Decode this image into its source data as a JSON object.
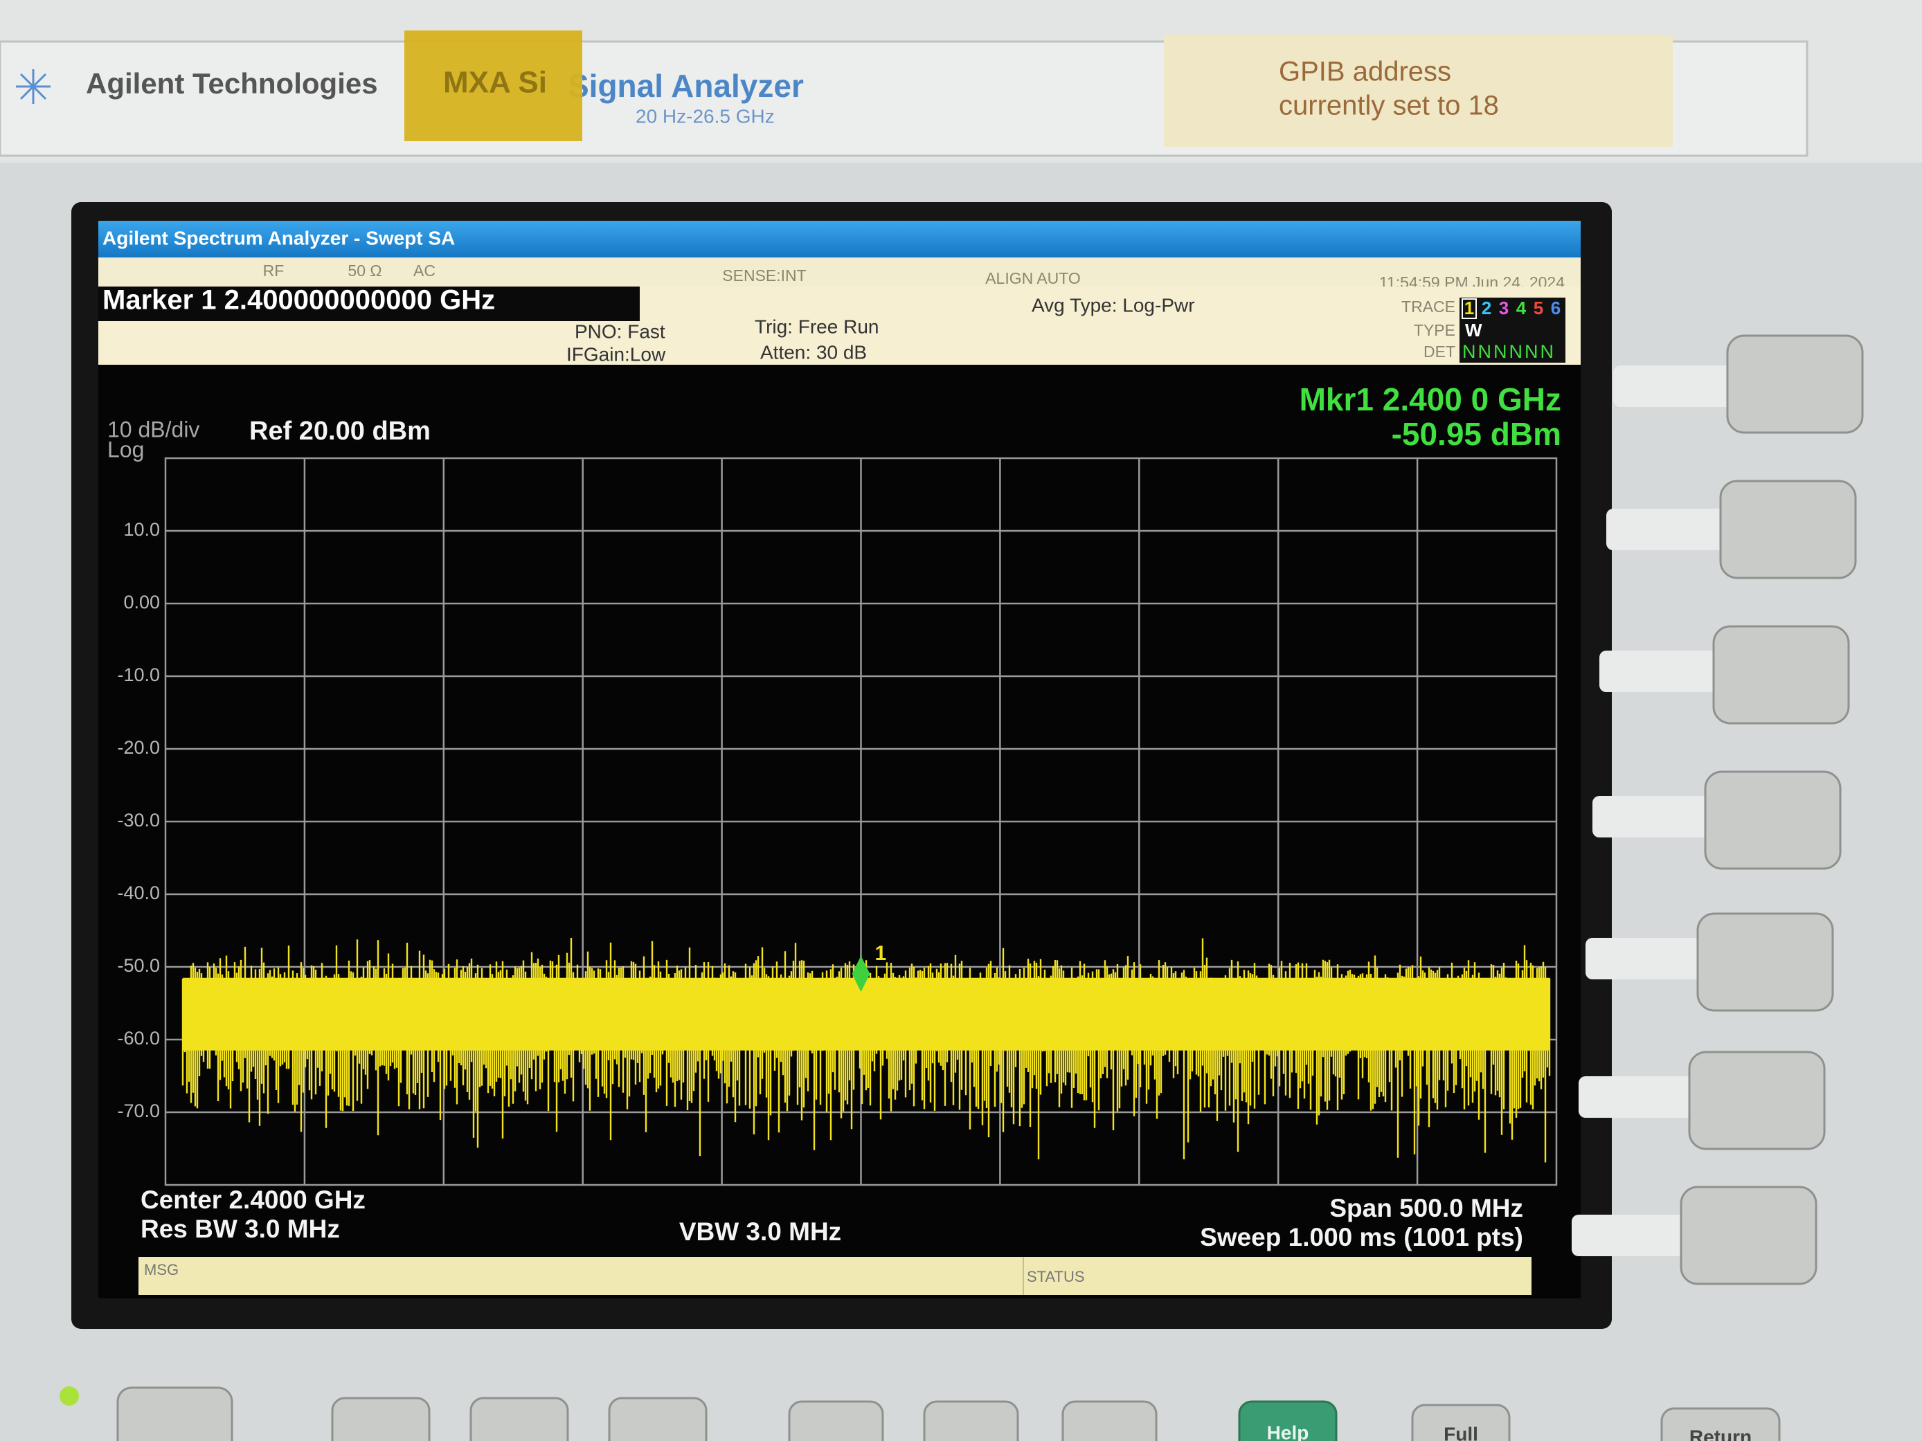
{
  "header": {
    "brand": "Agilent Technologies",
    "model": "Signal Analyzer",
    "range": "20 Hz-26.5 GHz",
    "sticker": "MXA Si",
    "gpib_note": [
      "GPIB address",
      "currently set to 18"
    ]
  },
  "screen": {
    "title": "Agilent Spectrum Analyzer - Swept SA",
    "status": {
      "rf": "RF",
      "impedance": "50 Ω",
      "coupling": "AC",
      "sense": "SENSE:INT",
      "align": "ALIGN AUTO",
      "time": "11:54:59 PM Jun 24, 2024"
    },
    "marker_label": "Marker 1 2.400000000000 GHz",
    "pno": "PNO: Fast",
    "ifgain": "IFGain:Low",
    "trig": "Trig: Free Run",
    "atten": "Atten: 30 dB",
    "avg_type": "Avg Type: Log-Pwr",
    "trace": {
      "trace_label": "TRACE",
      "trace_numbers": [
        "1",
        "2",
        "3",
        "4",
        "5",
        "6"
      ],
      "type_label": "TYPE",
      "type_value": "W",
      "det_label": "DET",
      "det_values": "NNNNNN"
    },
    "readout": {
      "mkr_freq": "Mkr1 2.400 0 GHz",
      "mkr_amp": "-50.95 dBm"
    },
    "scale": "10 dB/div",
    "scale_type": "Log",
    "ref": "Ref 20.00 dBm",
    "center": "Center 2.4000 GHz",
    "rbw": "Res BW 3.0 MHz",
    "vbw": "VBW 3.0 MHz",
    "span": "Span 500.0 MHz",
    "sweep": "Sweep  1.000 ms (1001 pts)",
    "msg": "MSG",
    "status_label": "STATUS"
  },
  "chart_data": {
    "type": "spectrum",
    "xlim": [
      2.15,
      2.65
    ],
    "ylim": [
      -80,
      20
    ],
    "yticks": [
      {
        "value": 10,
        "label": "10.0"
      },
      {
        "value": 0,
        "label": "0.00"
      },
      {
        "value": -10,
        "label": "-10.0"
      },
      {
        "value": -20,
        "label": "-20.0"
      },
      {
        "value": -30,
        "label": "-30.0"
      },
      {
        "value": -40,
        "label": "-40.0"
      },
      {
        "value": -50,
        "label": "-50.0"
      },
      {
        "value": -60,
        "label": "-60.0"
      },
      {
        "value": -70,
        "label": "-70.0"
      }
    ],
    "grid": true,
    "color": "#f2e21c",
    "marker": {
      "label": "1",
      "x": 2.4,
      "y": -50.95,
      "color": "#3fd03f"
    }
  },
  "buttons": [
    "Help",
    "Full",
    "Return"
  ]
}
